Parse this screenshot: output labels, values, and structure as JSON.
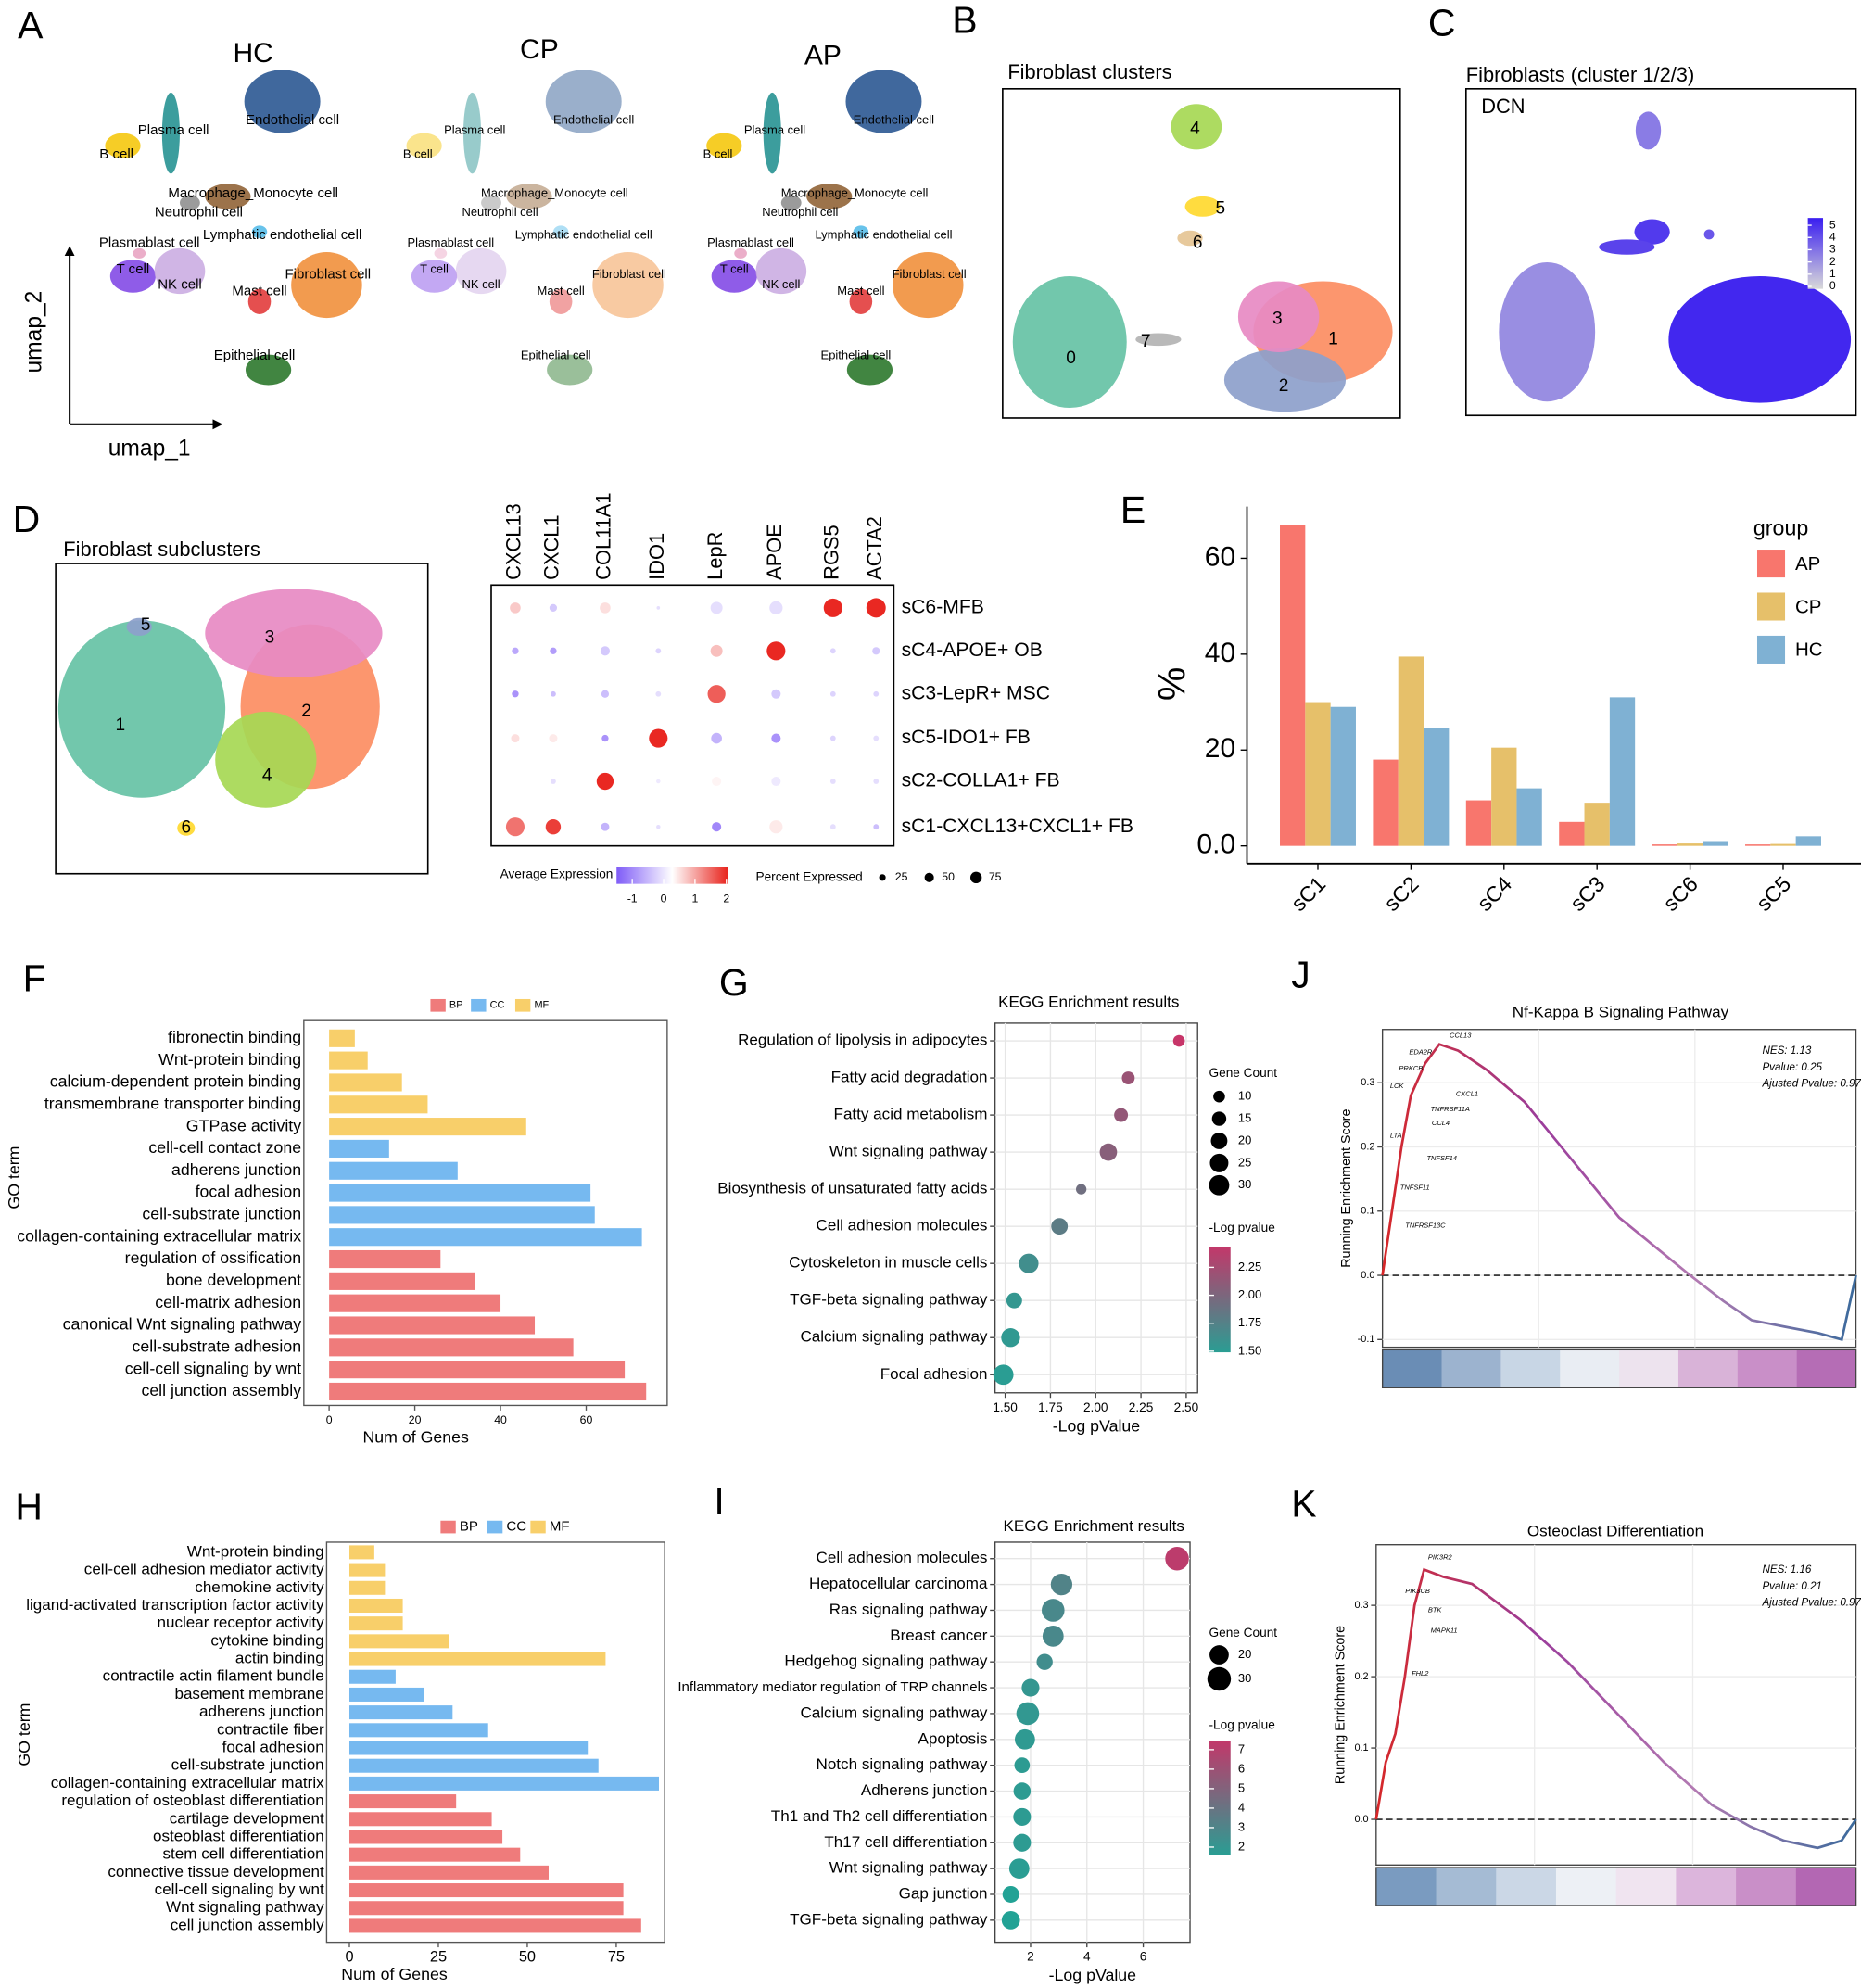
{
  "chart_data": [
    {
      "type": "umap",
      "panel": "A",
      "titles": [
        "HC",
        "CP",
        "AP"
      ],
      "xlabel": "umap_1",
      "ylabel": "umap_2",
      "labels": [
        "B cell",
        "Plasma cell",
        "Endothelial cell",
        "Macrophage_Monocyte cell",
        "Neutrophil cell",
        "Lymphatic endothelial cell",
        "Plasmablast cell",
        "T cell",
        "NK cell",
        "Fibroblast cell",
        "Mast cell",
        "Epithelial cell"
      ],
      "colors": [
        "#f5c400",
        "#1a8c8c",
        "#1f4e8c",
        "#8b5a2b",
        "#8a8a8a",
        "#4db8e8",
        "#e8a0c0",
        "#7b3fe4",
        "#c8a8e0",
        "#f08a30",
        "#e03030",
        "#207020"
      ]
    },
    {
      "type": "umap",
      "panel": "B",
      "title": "Fibroblast clusters",
      "labels": [
        "0",
        "1",
        "2",
        "3",
        "4",
        "5",
        "6",
        "7"
      ],
      "colors": [
        "#66c2a5",
        "#fc8d62",
        "#8da0cb",
        "#e78ac3",
        "#a6d854",
        "#ffd92f",
        "#e5c494",
        "#b3b3b3"
      ]
    },
    {
      "type": "umap",
      "panel": "C",
      "title": "Fibroblasts (cluster 1/2/3)",
      "subtitle": "DCN",
      "clim": [
        -0.2,
        5.6
      ],
      "cticks": [
        0,
        1,
        2,
        3,
        4,
        5
      ],
      "colors": [
        "#d9d9d9",
        "#3a1ef0"
      ]
    },
    {
      "type": "umap",
      "panel": "D",
      "title": "Fibroblast subclusters",
      "labels": [
        "1",
        "2",
        "3",
        "4",
        "5",
        "6"
      ],
      "colors": [
        "#66c2a5",
        "#fc8d62",
        "#e78ac3",
        "#a6d854",
        "#8da0cb",
        "#ffd92f"
      ]
    },
    {
      "type": "dotplot",
      "genes": [
        "CXCL13",
        "CXCL1",
        "COL11A1",
        "IDO1",
        "LepR",
        "APOE",
        "RGS5",
        "ACTA2"
      ],
      "rows": [
        "sC6-MFB",
        "sC4-APOE+ OB",
        "sC3-LepR+ MSC",
        "sC5-IDO1+ FB",
        "sC2-COLLA1+ FB",
        "sC1-CXCL13+CXCL1+ FB"
      ],
      "expression": [
        [
          0.5,
          -0.5,
          0.3,
          -0.3,
          -0.3,
          -0.3,
          2,
          2
        ],
        [
          -0.8,
          -0.9,
          -0.5,
          -0.4,
          0.6,
          2,
          -0.4,
          -0.5
        ],
        [
          -1,
          -0.6,
          -0.6,
          -0.3,
          1.5,
          -0.5,
          -0.4,
          -0.4
        ],
        [
          0.3,
          0.2,
          -1,
          2,
          -0.7,
          -1,
          -0.4,
          -0.3
        ],
        [
          0,
          -0.3,
          2,
          -0.2,
          0.1,
          -0.2,
          -0.3,
          -0.3
        ],
        [
          1.3,
          1.8,
          -0.7,
          -0.3,
          -1.1,
          0.2,
          -0.3,
          -0.6
        ]
      ],
      "percent": [
        [
          20,
          10,
          20,
          2,
          25,
          30,
          60,
          65
        ],
        [
          8,
          8,
          15,
          5,
          25,
          60,
          5,
          10
        ],
        [
          8,
          5,
          10,
          5,
          55,
          15,
          5,
          5
        ],
        [
          12,
          12,
          8,
          60,
          20,
          15,
          5,
          5
        ],
        [
          10,
          5,
          50,
          3,
          15,
          15,
          5,
          5
        ],
        [
          60,
          40,
          12,
          3,
          15,
          30,
          5,
          5
        ]
      ],
      "color_title": "Average Expression",
      "clim": [
        -1.5,
        2.05
      ],
      "cticks": [
        -1,
        0,
        1,
        2
      ],
      "colors": [
        "#7f5cf7",
        "#ffffff",
        "#e8231c"
      ],
      "size_title": "Percent Expressed",
      "size_ticks": [
        25,
        50,
        75
      ]
    },
    {
      "type": "bar",
      "panel": "E",
      "ylabel": "%",
      "legend_title": "group",
      "categories": [
        "sC1",
        "sC2",
        "sC4",
        "sC3",
        "sC6",
        "sC5"
      ],
      "series": [
        {
          "name": "AP",
          "color": "#f8766d",
          "values": [
            67,
            18,
            9.5,
            5,
            0.3,
            0.3
          ]
        },
        {
          "name": "CP",
          "color": "#e6c06a",
          "values": [
            30,
            39.5,
            20.5,
            9,
            0.5,
            0.4
          ]
        },
        {
          "name": "HC",
          "color": "#7fb1d3",
          "values": [
            29,
            24.5,
            12,
            31,
            1,
            2
          ]
        }
      ],
      "ylim": [
        -3.7,
        70.8
      ],
      "yticks": [
        {
          "value": 0,
          "label": "0.0"
        },
        20,
        40,
        60
      ]
    },
    {
      "type": "hbar",
      "panel": "F",
      "xlabel": "Num of Genes",
      "ylabel": "GO term",
      "xlim": [
        -5.9,
        78.9
      ],
      "xticks": [
        0,
        20,
        40,
        60
      ],
      "series": [
        {
          "name": "MF",
          "color": "#f8cf6a",
          "categories": [
            "fibronectin binding",
            "Wnt-protein binding",
            "calcium-dependent protein binding",
            "transmembrane transporter binding",
            "GTPase activity"
          ],
          "values": [
            6,
            9,
            17,
            23,
            46
          ]
        },
        {
          "name": "CC",
          "color": "#76b9f0",
          "categories": [
            "cell-cell contact zone",
            "adherens junction",
            "focal adhesion",
            "cell-substrate junction",
            "collagen-containing extracellular matrix"
          ],
          "values": [
            14,
            30,
            61,
            62,
            73
          ]
        },
        {
          "name": "BP",
          "color": "#ef7b7b",
          "categories": [
            "regulation of ossification",
            "bone development",
            "cell-matrix adhesion",
            "canonical Wnt signaling pathway",
            "cell-substrate adhesion",
            "cell-cell signaling by wnt",
            "cell junction assembly"
          ],
          "values": [
            26,
            34,
            40,
            48,
            57,
            69,
            74
          ]
        }
      ]
    },
    {
      "type": "kegg",
      "panel": "G",
      "title": "KEGG Enrichment results",
      "xlabel": "-Log pValue",
      "categories": [
        "Regulation of lipolysis in adipocytes",
        "Fatty acid degradation",
        "Fatty acid metabolism",
        "Wnt signaling pathway",
        "Biosynthesis of unsaturated fatty acids",
        "Cell adhesion molecules",
        "Cytoskeleton in muscle cells",
        "TGF-beta signaling pathway",
        "Calcium signaling pathway",
        "Focal adhesion"
      ],
      "values": [
        2.46,
        2.18,
        2.14,
        2.07,
        1.92,
        1.8,
        1.63,
        1.55,
        1.53,
        1.49
      ],
      "counts": [
        10,
        12,
        14,
        22,
        8,
        20,
        28,
        18,
        26,
        30
      ],
      "xlim": [
        1.444,
        2.563
      ],
      "xticks": [
        {
          "value": 1.5,
          "label": "1.50"
        },
        1.75,
        {
          "value": 2,
          "label": "2.00"
        },
        2.25,
        {
          "value": 2.5,
          "label": "2.50"
        }
      ],
      "size_title": "Gene Count",
      "size_ticks": [
        10,
        15,
        20,
        25,
        30
      ],
      "color_title": "-Log pvalue",
      "clim": [
        1.49,
        2.43
      ],
      "cticks": [
        {
          "value": 1.5,
          "label": "1.50"
        },
        1.75,
        {
          "value": 2,
          "label": "2.00"
        },
        2.25
      ],
      "colors": [
        "#2a9d93",
        "#c2386a"
      ],
      "grid": true
    },
    {
      "type": "gsea",
      "panel": "J",
      "title": "Nf-Kappa B Signaling Pathway",
      "ylabel": "Running Enrichment Score",
      "annotations": [
        "NES: 1.13",
        "Pvalue: 0.25",
        "Ajusted Pvalue: 0.97"
      ],
      "genes": [
        "CCL13",
        "EDA2R",
        "PRKCB",
        "LCK",
        "CXCL1",
        "TNFRSF11A",
        "CCL4",
        "LTA",
        "TNFSF14",
        "TNFSF11",
        "TNFRSF13C"
      ],
      "x": [
        0,
        0.02,
        0.04,
        0.06,
        0.09,
        0.12,
        0.16,
        0.22,
        0.3,
        0.4,
        0.5,
        0.6,
        0.65,
        0.72,
        0.78,
        0.85,
        0.92,
        0.97,
        1
      ],
      "values": [
        0,
        0.1,
        0.2,
        0.28,
        0.33,
        0.36,
        0.35,
        0.32,
        0.27,
        0.18,
        0.09,
        0.03,
        0,
        -0.04,
        -0.07,
        -0.08,
        -0.09,
        -0.1,
        0
      ],
      "xlim": [
        0,
        1
      ],
      "ylim": [
        -0.112,
        0.383
      ],
      "yticks": [
        -0.1,
        {
          "value": 0,
          "label": "0.0"
        },
        0.1,
        0.2,
        0.3
      ],
      "grid": true
    },
    {
      "type": "hbar",
      "panel": "H",
      "xlabel": "Num of Genes",
      "ylabel": "GO term",
      "xlim": [
        -6.4,
        88.6
      ],
      "xticks": [
        0,
        25,
        50,
        75
      ],
      "series": [
        {
          "name": "MF",
          "color": "#f8cf6a",
          "categories": [
            "Wnt-protein binding",
            "cell-cell adhesion mediator activity",
            "chemokine activity",
            "ligand-activated transcription factor activity",
            "nuclear receptor activity",
            "cytokine binding",
            "actin binding"
          ],
          "values": [
            7,
            10,
            10,
            15,
            15,
            28,
            72
          ]
        },
        {
          "name": "CC",
          "color": "#76b9f0",
          "categories": [
            "contractile actin filament bundle",
            "basement membrane",
            "adherens junction",
            "contractile fiber",
            "focal adhesion",
            "cell-substrate junction",
            "collagen-containing extracellular matrix"
          ],
          "values": [
            13,
            21,
            29,
            39,
            67,
            70,
            87
          ]
        },
        {
          "name": "BP",
          "color": "#ef7b7b",
          "categories": [
            "regulation of osteoblast differentiation",
            "cartilage development",
            "osteoblast differentiation",
            "stem cell differentiation",
            "connective tissue development",
            "cell-cell signaling by wnt",
            "Wnt signaling pathway",
            "cell junction assembly"
          ],
          "values": [
            30,
            40,
            43,
            48,
            56,
            77,
            77,
            82
          ]
        }
      ]
    },
    {
      "type": "kegg",
      "panel": "I",
      "title": "KEGG Enrichment results",
      "xlabel": "-Log pValue",
      "categories": [
        "Cell adhesion molecules",
        "Hepatocellular carcinoma",
        "Ras signaling pathway",
        "Breast cancer",
        "Hedgehog signaling pathway",
        "Inflammatory mediator regulation of TRP channels",
        "Calcium signaling pathway",
        "Apoptosis",
        "Notch signaling pathway",
        "Adherens junction",
        "Th1 and Th2 cell differentiation",
        "Th17 cell differentiation",
        "Wnt signaling pathway",
        "Gap junction",
        "TGF-beta signaling pathway"
      ],
      "values": [
        7.2,
        3.1,
        2.8,
        2.8,
        2.5,
        2,
        1.9,
        1.8,
        1.7,
        1.7,
        1.7,
        1.7,
        1.6,
        1.3,
        1.3
      ],
      "counts": [
        30,
        25,
        28,
        24,
        14,
        17,
        28,
        22,
        13,
        16,
        17,
        17,
        22,
        15,
        18
      ],
      "xlim": [
        0.74,
        7.66
      ],
      "xticks": [
        2,
        4,
        6
      ],
      "size_title": "Gene Count",
      "size_ticks": [
        20,
        30
      ],
      "color_title": "-Log pvalue",
      "clim": [
        1.6,
        7.45
      ],
      "cticks": [
        2,
        3,
        4,
        5,
        6,
        7
      ],
      "colors": [
        "#2a9d93",
        "#c2386a"
      ],
      "grid": true
    },
    {
      "type": "gsea",
      "panel": "K",
      "title": "Osteoclast Differentiation",
      "ylabel": "Running Enrichment Score",
      "annotations": [
        "NES: 1.16",
        "Pvalue: 0.21",
        "Ajusted Pvalue: 0.97"
      ],
      "genes": [
        "PIK3R2",
        "PIK3CB",
        "BTK",
        "MAPK11",
        "FHL2"
      ],
      "x": [
        0,
        0.02,
        0.04,
        0.06,
        0.08,
        0.1,
        0.14,
        0.2,
        0.3,
        0.4,
        0.5,
        0.6,
        0.7,
        0.78,
        0.85,
        0.92,
        0.97,
        1
      ],
      "values": [
        0,
        0.08,
        0.12,
        0.2,
        0.3,
        0.35,
        0.34,
        0.33,
        0.28,
        0.22,
        0.15,
        0.08,
        0.02,
        -0.01,
        -0.03,
        -0.04,
        -0.03,
        0
      ],
      "xlim": [
        0,
        1
      ],
      "ylim": [
        -0.064,
        0.385
      ],
      "yticks": [
        {
          "value": 0,
          "label": "0.0"
        },
        0.1,
        0.2,
        0.3
      ],
      "grid": true
    }
  ]
}
